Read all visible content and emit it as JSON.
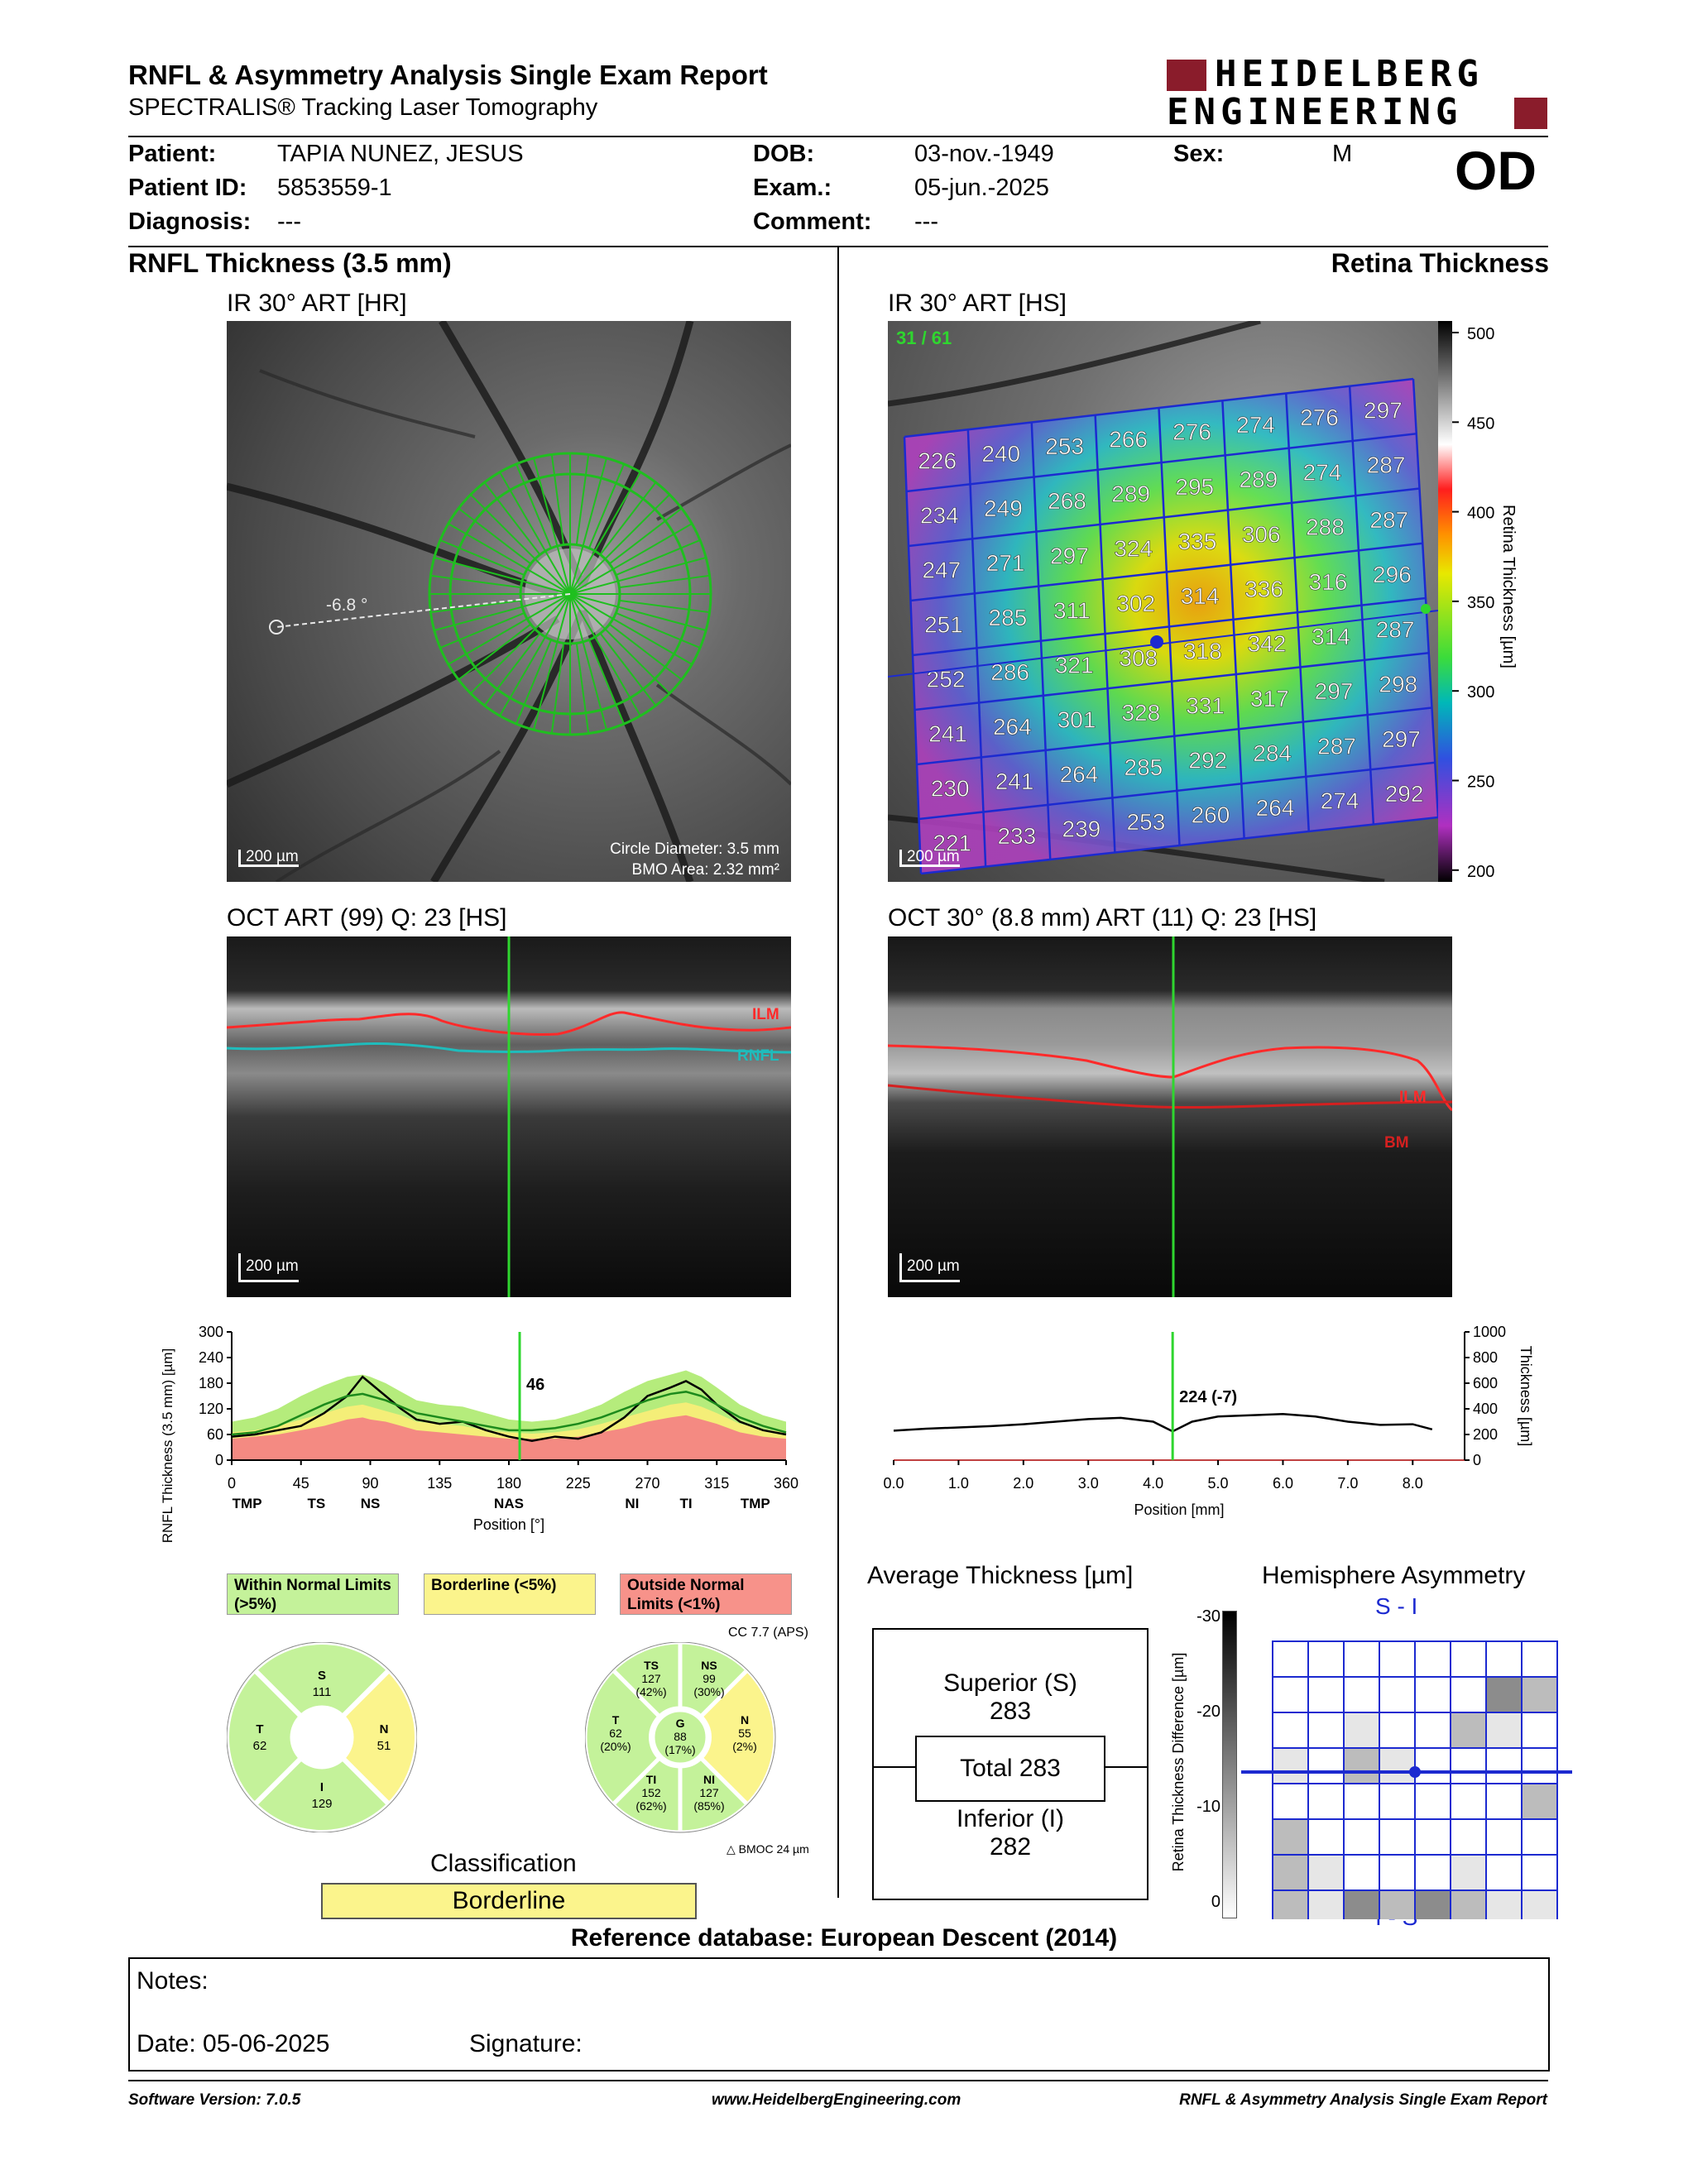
{
  "header": {
    "title": "RNFL & Asymmetry Analysis Single Exam Report",
    "subtitle": "SPECTRALIS® Tracking Laser Tomography",
    "logo_line1": "HEIDELBERG",
    "logo_line2": "ENGINEERING"
  },
  "patient": {
    "patient_label": "Patient:",
    "patient_value": "TAPIA NUNEZ, JESUS",
    "id_label": "Patient ID:",
    "id_value": "5853559-1",
    "diagnosis_label": "Diagnosis:",
    "diagnosis_value": "---",
    "dob_label": "DOB:",
    "dob_value": "03-nov.-1949",
    "exam_label": "Exam.:",
    "exam_value": "05-jun.-2025",
    "comment_label": "Comment:",
    "comment_value": "---",
    "sex_label": "Sex:",
    "sex_value": "M",
    "eye": "OD"
  },
  "rnfl": {
    "section_title": "RNFL Thickness (3.5 mm)",
    "ir_label": "IR 30° ART [HR]",
    "angle_label": "-6.8 °",
    "scale_label": "200 µm",
    "circle_diameter": "Circle Diameter: 3.5 mm",
    "bmo_area": "BMO Area: 2.32 mm²",
    "oct_label": "OCT ART (99) Q: 23 [HS]",
    "oct_ilm": "ILM",
    "oct_rnfl": "RNFL",
    "oct_scale": "200 µm"
  },
  "retina": {
    "section_title": "Retina Thickness",
    "ir_label": "IR 30° ART [HS]",
    "frame_counter": "31 / 61",
    "scale_label": "200 µm",
    "colorbar_ticks": [
      "500",
      "450",
      "400",
      "350",
      "300",
      "250",
      "200"
    ],
    "colorbar_label": "Retina Thickness [µm]",
    "grid": [
      [
        "226",
        "240",
        "253",
        "266",
        "276",
        "274",
        "276",
        "297"
      ],
      [
        "234",
        "249",
        "268",
        "289",
        "295",
        "289",
        "274",
        "287"
      ],
      [
        "247",
        "271",
        "297",
        "324",
        "335",
        "306",
        "288",
        "287"
      ],
      [
        "251",
        "285",
        "311",
        "302",
        "314",
        "336",
        "316",
        "296"
      ],
      [
        "252",
        "286",
        "321",
        "308",
        "318",
        "342",
        "314",
        "287"
      ],
      [
        "241",
        "264",
        "301",
        "328",
        "331",
        "317",
        "297",
        "298"
      ],
      [
        "230",
        "241",
        "264",
        "285",
        "292",
        "284",
        "287",
        "297"
      ],
      [
        "221",
        "233",
        "239",
        "253",
        "260",
        "264",
        "274",
        "292"
      ]
    ],
    "oct_label": "OCT 30° (8.8 mm) ART (11) Q: 23 [HS]",
    "oct_ilm": "ILM",
    "oct_bm": "BM",
    "oct_scale": "200 µm"
  },
  "chart_data": [
    {
      "type": "line",
      "title": "",
      "xlabel": "Position [°]",
      "ylabel": "RNFL Thickness (3.5 mm) [µm]",
      "xlim": [
        0,
        360
      ],
      "ylim": [
        0,
        300
      ],
      "x_ticks": [
        "0",
        "45",
        "90",
        "135",
        "180",
        "225",
        "270",
        "315",
        "360"
      ],
      "y_ticks": [
        "0",
        "60",
        "120",
        "180",
        "240",
        "300"
      ],
      "sector_labels": [
        {
          "x": 10,
          "label": "TMP"
        },
        {
          "x": 55,
          "label": "TS"
        },
        {
          "x": 90,
          "label": "NS"
        },
        {
          "x": 180,
          "label": "NAS"
        },
        {
          "x": 260,
          "label": "NI"
        },
        {
          "x": 295,
          "label": "TI"
        },
        {
          "x": 340,
          "label": "TMP"
        }
      ],
      "cursor": {
        "x": 187,
        "label": "46"
      },
      "x": [
        0,
        15,
        30,
        45,
        60,
        75,
        85,
        90,
        100,
        110,
        120,
        135,
        150,
        165,
        180,
        195,
        210,
        225,
        240,
        255,
        270,
        285,
        295,
        305,
        315,
        330,
        345,
        360
      ],
      "series": [
        {
          "values": [
            55,
            60,
            70,
            80,
            110,
            150,
            195,
            180,
            150,
            120,
            95,
            85,
            90,
            70,
            55,
            45,
            55,
            50,
            65,
            100,
            150,
            170,
            185,
            165,
            130,
            90,
            70,
            60
          ]
        },
        {
          "values": [
            60,
            65,
            80,
            105,
            130,
            150,
            155,
            150,
            140,
            125,
            110,
            100,
            90,
            80,
            70,
            70,
            75,
            85,
            100,
            120,
            140,
            155,
            160,
            150,
            130,
            100,
            80,
            65
          ]
        }
      ],
      "bands": {
        "outside_upper": [
          50,
          55,
          60,
          70,
          80,
          95,
          100,
          95,
          90,
          80,
          70,
          65,
          60,
          55,
          50,
          50,
          50,
          55,
          65,
          75,
          90,
          100,
          105,
          95,
          85,
          65,
          55,
          50
        ],
        "borderline_upper": [
          65,
          70,
          80,
          95,
          110,
          125,
          130,
          125,
          115,
          105,
          90,
          85,
          80,
          70,
          65,
          62,
          65,
          72,
          85,
          100,
          115,
          130,
          135,
          125,
          110,
          85,
          72,
          65
        ],
        "normal_upper": [
          90,
          100,
          120,
          150,
          175,
          195,
          200,
          195,
          180,
          160,
          140,
          130,
          125,
          110,
          95,
          90,
          95,
          110,
          130,
          160,
          185,
          200,
          210,
          195,
          170,
          130,
          105,
          90
        ]
      }
    },
    {
      "type": "line",
      "title": "",
      "xlabel": "Position [mm]",
      "ylabel": "Thickness [µm]",
      "xlim": [
        0,
        8.8
      ],
      "ylim": [
        0,
        1000
      ],
      "x_ticks": [
        "0.0",
        "1.0",
        "2.0",
        "3.0",
        "4.0",
        "5.0",
        "6.0",
        "7.0",
        "8.0"
      ],
      "y_ticks": [
        "0",
        "200",
        "400",
        "600",
        "800",
        "1000"
      ],
      "cursor": {
        "x": 4.3,
        "label": "224 (-7)"
      },
      "x": [
        0,
        0.5,
        1.0,
        1.5,
        2.0,
        2.5,
        3.0,
        3.5,
        4.0,
        4.3,
        4.6,
        5.0,
        5.5,
        6.0,
        6.5,
        7.0,
        7.5,
        8.0,
        8.3
      ],
      "series": [
        {
          "values": [
            230,
            245,
            255,
            265,
            280,
            300,
            320,
            330,
            300,
            224,
            300,
            340,
            350,
            360,
            340,
            300,
            275,
            280,
            240
          ]
        }
      ]
    }
  ],
  "legend": {
    "within": "Within Normal Limits (>5%)",
    "borderline": "Borderline (<5%)",
    "outside": "Outside Normal Limits (<1%)"
  },
  "sectors_left": {
    "S": "111",
    "T": "62",
    "N": "51",
    "I": "129"
  },
  "sectors_right": {
    "cc": "CC 7.7 (APS)",
    "TS_label": "TS",
    "TS_value": "127",
    "TS_pct": "(42%)",
    "NS_label": "NS",
    "NS_value": "99",
    "NS_pct": "(30%)",
    "T_label": "T",
    "T_value": "62",
    "T_pct": "(20%)",
    "G_label": "G",
    "G_value": "88",
    "G_pct": "(17%)",
    "N_label": "N",
    "N_value": "55",
    "N_pct": "(2%)",
    "TI_label": "TI",
    "TI_value": "152",
    "TI_pct": "(62%)",
    "NI_label": "NI",
    "NI_value": "127",
    "NI_pct": "(85%)",
    "bmoc": "BMOC 24 µm",
    "colors": {
      "normal": "#c4f29a",
      "borderline": "#fbf48c",
      "outside": "#f7928a"
    }
  },
  "classification": {
    "label": "Classification",
    "value": "Borderline"
  },
  "average_thickness": {
    "title": "Average Thickness [µm]",
    "superior_label": "Superior (S)",
    "superior_value": "283",
    "total": "Total 283",
    "inferior_label": "Inferior (I)",
    "inferior_value": "282"
  },
  "hemisphere": {
    "title": "Hemisphere Asymmetry",
    "top_label": "S - I",
    "bottom_label": "I - S",
    "axis_label": "Retina Thickness Difference [µm]",
    "axis_ticks": [
      "-30",
      "-20",
      "-10",
      "0"
    ],
    "shades": [
      [
        0,
        0,
        0,
        0,
        0,
        0,
        0,
        0
      ],
      [
        0,
        0,
        0,
        0,
        0,
        0,
        3,
        2
      ],
      [
        0,
        0,
        1,
        0,
        0,
        2,
        1,
        0
      ],
      [
        1,
        0,
        2,
        1,
        0,
        0,
        0,
        0
      ],
      [
        0,
        0,
        0,
        0,
        0,
        0,
        0,
        2
      ],
      [
        2,
        0,
        0,
        0,
        0,
        0,
        0,
        0
      ],
      [
        2,
        1,
        0,
        0,
        0,
        1,
        0,
        0
      ],
      [
        2,
        1,
        3,
        2,
        3,
        2,
        1,
        1
      ]
    ]
  },
  "reference": "Reference database: European Descent (2014)",
  "notes": {
    "notes_label": "Notes:",
    "date": "Date: 05-06-2025",
    "signature": "Signature:"
  },
  "footer": {
    "software": "Software Version: 7.0.5",
    "website": "www.HeidelbergEngineering.com",
    "report": "RNFL & Asymmetry Analysis Single Exam Report"
  }
}
